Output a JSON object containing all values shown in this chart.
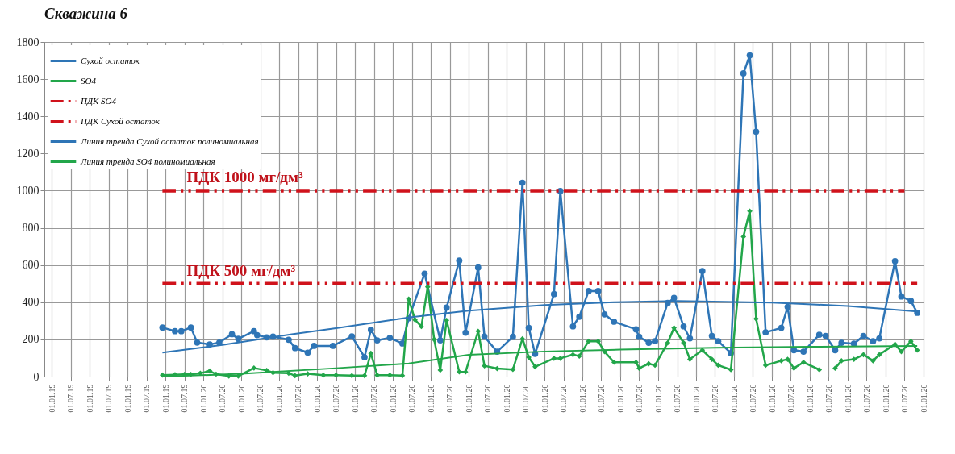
{
  "chart_data": {
    "type": "line",
    "title": "Скважина 6",
    "legend": "top left",
    "grid": true,
    "xlim": [
      "1995-10-20",
      "2019-01-01"
    ],
    "ylim": [
      0,
      1800
    ],
    "yticks": [
      0,
      200,
      400,
      600,
      800,
      1000,
      1200,
      1400,
      1600,
      1800
    ],
    "xticks": [
      {
        "value": "1996-01-01",
        "label": "01.01.19"
      },
      {
        "value": "1996-07-01",
        "label": "01.07.19"
      },
      {
        "value": "1997-01-01",
        "label": "01.01.19"
      },
      {
        "value": "1997-07-01",
        "label": "01.07.19"
      },
      {
        "value": "1998-01-01",
        "label": "01.01.19"
      },
      {
        "value": "1998-07-01",
        "label": "01.07.19"
      },
      {
        "value": "1999-01-01",
        "label": "01.01.19"
      },
      {
        "value": "1999-07-01",
        "label": "01.07.19"
      },
      {
        "value": "2000-01-01",
        "label": "01.01.20"
      },
      {
        "value": "2000-07-01",
        "label": "01.07.20"
      },
      {
        "value": "2001-01-01",
        "label": "01.01.20"
      },
      {
        "value": "2001-07-01",
        "label": "01.07.20"
      },
      {
        "value": "2002-01-01",
        "label": "01.01.20"
      },
      {
        "value": "2002-07-01",
        "label": "01.07.20"
      },
      {
        "value": "2003-01-01",
        "label": "01.01.20"
      },
      {
        "value": "2003-07-01",
        "label": "01.07.20"
      },
      {
        "value": "2004-01-01",
        "label": "01.01.20"
      },
      {
        "value": "2004-07-01",
        "label": "01.07.20"
      },
      {
        "value": "2005-01-01",
        "label": "01.01.20"
      },
      {
        "value": "2005-07-01",
        "label": "01.07.20"
      },
      {
        "value": "2006-01-01",
        "label": "01.01.20"
      },
      {
        "value": "2006-07-01",
        "label": "01.07.20"
      },
      {
        "value": "2007-01-01",
        "label": "01.01.20"
      },
      {
        "value": "2007-07-01",
        "label": "01.07.20"
      },
      {
        "value": "2008-01-01",
        "label": "01.01.20"
      },
      {
        "value": "2008-07-01",
        "label": "01.07.20"
      },
      {
        "value": "2009-01-01",
        "label": "01.01.20"
      },
      {
        "value": "2009-07-01",
        "label": "01.07.20"
      },
      {
        "value": "2010-01-01",
        "label": "01.01.20"
      },
      {
        "value": "2010-07-01",
        "label": "01.07.20"
      },
      {
        "value": "2011-01-01",
        "label": "01.01.20"
      },
      {
        "value": "2011-07-01",
        "label": "01.07.20"
      },
      {
        "value": "2012-01-01",
        "label": "01.01.20"
      },
      {
        "value": "2012-07-01",
        "label": "01.07.20"
      },
      {
        "value": "2013-01-01",
        "label": "01.01.20"
      },
      {
        "value": "2013-07-01",
        "label": "01.07.20"
      },
      {
        "value": "2014-01-01",
        "label": "01.01.20"
      },
      {
        "value": "2014-07-01",
        "label": "01.07.20"
      },
      {
        "value": "2015-01-01",
        "label": "01.01.20"
      },
      {
        "value": "2015-07-01",
        "label": "01.07.20"
      },
      {
        "value": "2016-01-01",
        "label": "01.01.20"
      },
      {
        "value": "2016-07-01",
        "label": "01.07.20"
      },
      {
        "value": "2017-01-01",
        "label": "01.01.20"
      },
      {
        "value": "2017-07-01",
        "label": "01.07.20"
      },
      {
        "value": "2018-01-01",
        "label": "01.01.20"
      },
      {
        "value": "2018-07-01",
        "label": "01.07.20"
      },
      {
        "value": "2019-01-01",
        "label": "01.01.20"
      }
    ],
    "annotations": [
      "ПДК 500 мг/дм³",
      "ПДК 1000 мг/дм³"
    ],
    "series": [
      {
        "name": "Сухой остаток",
        "color": "#2e75b6",
        "marker": "circle",
        "line_style": "solid",
        "x": [
          "1998-12",
          "1999-04",
          "1999-06",
          "1999-09",
          "1999-11",
          "2000-03",
          "2000-06",
          "2000-10",
          "2000-12",
          "2001-05",
          "2001-06",
          "2001-09",
          "2001-11",
          "2002-04",
          "2002-06",
          "2002-10",
          "2002-12",
          "2003-06",
          "2003-12",
          "2004-04",
          "2004-06",
          "2004-08",
          "2004-12",
          "2005-04",
          "2005-06",
          "2005-11",
          "2006-04",
          "2006-06",
          "2006-10",
          "2006-12",
          "2007-04",
          "2007-06",
          "2007-10",
          "2008-03",
          "2008-06",
          "2008-08",
          "2008-10",
          "2009-04",
          "2009-06",
          "2009-10",
          "2009-12",
          "2010-03",
          "2010-06",
          "2010-08",
          "2010-11",
          "2011-06",
          "2011-07",
          "2011-10",
          "2011-12",
          "2012-04",
          "2012-06",
          "2012-09",
          "2012-11",
          "2013-03",
          "2013-06",
          "2013-08",
          "2013-12",
          "2014-04",
          "2014-06",
          "2014-08",
          "2014-11",
          "2015-04",
          "2015-06",
          "2015-08",
          "2015-11",
          "2016-04",
          "2016-06",
          "2016-09",
          "2016-11",
          "2017-03",
          "2017-06",
          "2017-09",
          "2017-11",
          "2018-04",
          "2018-06",
          "2018-09",
          "2018-11"
        ],
        "values": [
          264,
          244,
          244,
          264,
          183,
          173,
          183,
          228,
          203,
          244,
          223,
          211,
          215,
          198,
          153,
          129,
          165,
          165,
          216,
          104,
          252,
          195,
          208,
          178,
          313,
          554,
          195,
          371,
          624,
          236,
          587,
          215,
          134,
          214,
          1043,
          262,
          122,
          444,
          998,
          270,
          322,
          460,
          460,
          335,
          295,
          254,
          214,
          182,
          190,
          396,
          423,
          270,
          206,
          568,
          219,
          190,
          126,
          1631,
          1728,
          1317,
          238,
          262,
          375,
          142,
          134,
          225,
          219,
          142,
          182,
          177,
          219,
          190,
          206,
          621,
          431,
          407,
          343
        ]
      },
      {
        "name": "SO4",
        "color": "#22a64a",
        "marker": "diamond",
        "line_style": "solid",
        "x": [
          "1998-12",
          "1999-04",
          "1999-07",
          "1999-09",
          "1999-12",
          "2000-03",
          "2000-05",
          "2000-09",
          "2000-12",
          "2001-05",
          "2001-09",
          "2001-11",
          "2002-04",
          "2002-06",
          "2002-10",
          "2003-03",
          "2003-07",
          "2003-12",
          "2004-04",
          "2004-06",
          "2004-08",
          "2004-12",
          "2005-04",
          "2005-06",
          "2005-08",
          "2005-10",
          "2005-12",
          "2006-02",
          "2006-04",
          "2006-06",
          "2006-10",
          "2006-12",
          "2007-04",
          "2007-06",
          "2007-10",
          "2008-03",
          "2008-06",
          "2008-08",
          "2008-10",
          "2009-04",
          "2009-06",
          "2009-10",
          "2009-12",
          "2010-03",
          "2010-06",
          "2010-08",
          "2010-11",
          "2011-06",
          "2011-07",
          "2011-10",
          "2011-12",
          "2012-04",
          "2012-06",
          "2012-09",
          "2012-11",
          "2013-03",
          "2013-06",
          "2013-08",
          "2013-12",
          "2014-04",
          "2014-06",
          "2014-08",
          "2014-11",
          "2015-04",
          "2015-06",
          "2015-08",
          "2015-11",
          "2016-04",
          "2016-06",
          "2016-09",
          "2016-11",
          "2017-03",
          "2017-06",
          "2017-09",
          "2017-11",
          "2018-04",
          "2018-06",
          "2018-09",
          "2018-11"
        ],
        "values": [
          8,
          10,
          12,
          12,
          18,
          30,
          13,
          3,
          3,
          46,
          33,
          21,
          18,
          5,
          15,
          8,
          8,
          5,
          5,
          125,
          8,
          8,
          5,
          417,
          305,
          269,
          483,
          200,
          35,
          302,
          25,
          25,
          244,
          58,
          43,
          38,
          203,
          104,
          53,
          98,
          98,
          118,
          110,
          190,
          190,
          134,
          77,
          77,
          45,
          69,
          61,
          182,
          262,
          182,
          93,
          142,
          93,
          61,
          37,
          753,
          890,
          311,
          61,
          85,
          93,
          45,
          77,
          37,
          null,
          45,
          85,
          93,
          118,
          85,
          118,
          174,
          134,
          190,
          142
        ]
      },
      {
        "name": "ПДК SO4",
        "color": "#d0121b",
        "marker": "none",
        "line_style": "dashed",
        "x": [
          "1998-12",
          "2018-11"
        ],
        "values": [
          500,
          500
        ]
      },
      {
        "name": "ПДК Сухой остаток",
        "color": "#d0121b",
        "marker": "none",
        "line_style": "dashed",
        "x": [
          "1998-12",
          "2018-07"
        ],
        "values": [
          1000,
          1000
        ]
      },
      {
        "name": "Линия тренда Сухой остаток полиномиальная",
        "color": "#2e75b6",
        "marker": "none",
        "line_style": "solid",
        "x": [
          "1998-12",
          "2000-07",
          "2002-05",
          "2003-07",
          "2005-06",
          "2007-01",
          "2009-01",
          "2010-11",
          "2012-07",
          "2015-01",
          "2017-01",
          "2018-11"
        ],
        "values": [
          129,
          170,
          228,
          260,
          318,
          355,
          385,
          400,
          407,
          398,
          380,
          350
        ]
      },
      {
        "name": "Линия тренда SO4 полиномиальная",
        "color": "#22a64a",
        "marker": "none",
        "line_style": "solid",
        "x": [
          "1998-12",
          "2001-01",
          "2003-07",
          "2005-06",
          "2007-01",
          "2009-01",
          "2011-01",
          "2013-07",
          "2016-01",
          "2018-11"
        ],
        "values": [
          0,
          15,
          45,
          71,
          117,
          135,
          145,
          155,
          160,
          165
        ]
      }
    ]
  }
}
